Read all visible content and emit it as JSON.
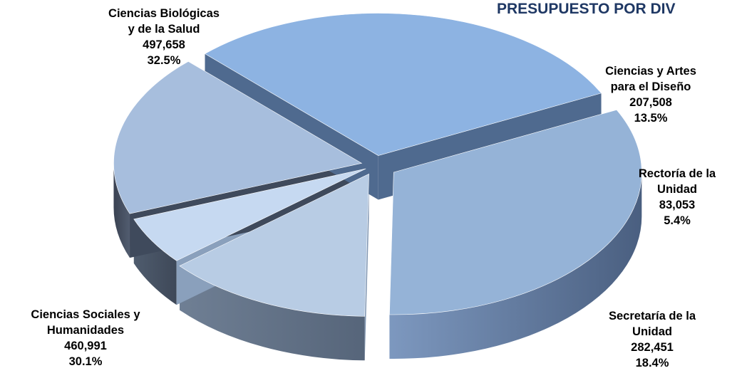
{
  "chart_data": {
    "type": "pie",
    "title": "PRESUPUESTO POR DIV",
    "slices": [
      {
        "label_lines": [
          "Ciencias Biológicas",
          "y de la Salud"
        ],
        "value": 497658,
        "value_label": "497,658",
        "percent_label": "32.5%",
        "color": "#95b3d7",
        "side": "#5f7c9f"
      },
      {
        "label_lines": [
          "Ciencias y Artes",
          "para el Diseño"
        ],
        "value": 207508,
        "value_label": "207,508",
        "percent_label": "13.5%",
        "color": "#b8cce4",
        "side": "#8096b2"
      },
      {
        "label_lines": [
          "Rectoría de la",
          "Unidad"
        ],
        "value": 83053,
        "value_label": "83,053",
        "percent_label": "5.4%",
        "color": "#c6d9f1",
        "side": "#8aa0bc"
      },
      {
        "label_lines": [
          "Secretaría de la",
          "Unidad"
        ],
        "value": 282451,
        "value_label": "282,451",
        "percent_label": "18.4%",
        "color": "#a7bedd",
        "side": "#3f4a5c"
      },
      {
        "label_lines": [
          "Ciencias Sociales y",
          "Humanidades"
        ],
        "value": 460991,
        "value_label": "460,991",
        "percent_label": "30.1%",
        "color": "#8db3e2",
        "side": "#4f6a8f"
      }
    ]
  }
}
